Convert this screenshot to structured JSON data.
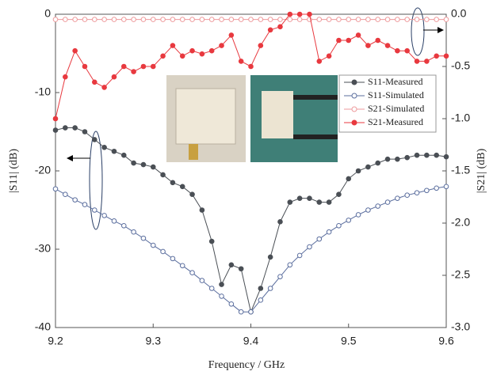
{
  "chart_data": {
    "type": "line",
    "x_label": "Frequency / GHz",
    "y_label": "|S11| (dB)",
    "y2_label": "|S21| (dB)",
    "x": [
      9.2,
      9.21,
      9.22,
      9.23,
      9.24,
      9.25,
      9.26,
      9.27,
      9.28,
      9.29,
      9.3,
      9.31,
      9.32,
      9.33,
      9.34,
      9.35,
      9.36,
      9.37,
      9.38,
      9.39,
      9.4,
      9.41,
      9.42,
      9.43,
      9.44,
      9.45,
      9.46,
      9.47,
      9.48,
      9.49,
      9.5,
      9.51,
      9.52,
      9.53,
      9.54,
      9.55,
      9.56,
      9.57,
      9.58,
      9.59,
      9.6
    ],
    "xlim": [
      9.2,
      9.6
    ],
    "xticks": [
      9.2,
      9.3,
      9.4,
      9.5,
      9.6
    ],
    "ylim": [
      -40,
      0
    ],
    "yticks": [
      0,
      -10,
      -20,
      -30,
      -40
    ],
    "y2lim": [
      -3,
      0
    ],
    "y2ticks": [
      {
        "value": 0,
        "label": "0.0"
      },
      -0.5,
      {
        "value": -1,
        "label": "-1.0"
      },
      -1.5,
      {
        "value": -2,
        "label": "-2.0"
      },
      -2.5,
      {
        "value": -3,
        "label": "-3.0"
      }
    ],
    "series": [
      {
        "name": "S11-Measured",
        "color": "#4a4f55",
        "filled": true,
        "axis": "y",
        "values": [
          -14.8,
          -14.5,
          -14.5,
          -15,
          -16,
          -17,
          -17.5,
          -18,
          -19,
          -19.2,
          -19.5,
          -20.5,
          -21.5,
          -22,
          -23,
          -25,
          -29,
          -34.5,
          -32,
          -32.5,
          -38,
          -35,
          -31,
          -26.5,
          -24,
          -23.5,
          -23.5,
          -24,
          -24,
          -23,
          -21,
          -20,
          -19.5,
          -19,
          -18.5,
          -18.5,
          -18.3,
          -18,
          -18,
          -18,
          -18.2
        ]
      },
      {
        "name": "S11-Simulated",
        "color": "#5b6e9e",
        "filled": false,
        "axis": "y",
        "values": [
          -22.3,
          -23,
          -23.7,
          -24.3,
          -25,
          -25.7,
          -26.4,
          -27,
          -27.8,
          -28.6,
          -29.5,
          -30.3,
          -31.2,
          -32.1,
          -33,
          -34,
          -35,
          -36,
          -37,
          -38,
          -38,
          -36.5,
          -35,
          -33.5,
          -32,
          -30.8,
          -29.7,
          -28.7,
          -27.8,
          -27,
          -26.3,
          -25.6,
          -25,
          -24.5,
          -24,
          -23.5,
          -23.1,
          -22.8,
          -22.5,
          -22.2,
          -22
        ]
      },
      {
        "name": "S21-Simulated",
        "color": "#ee9a9c",
        "filled": false,
        "axis": "y2",
        "values": [
          -0.05,
          -0.05,
          -0.05,
          -0.05,
          -0.05,
          -0.05,
          -0.05,
          -0.05,
          -0.05,
          -0.05,
          -0.05,
          -0.05,
          -0.05,
          -0.05,
          -0.05,
          -0.05,
          -0.05,
          -0.05,
          -0.05,
          -0.05,
          -0.05,
          -0.05,
          -0.05,
          -0.05,
          -0.05,
          -0.05,
          -0.05,
          -0.05,
          -0.05,
          -0.05,
          -0.05,
          -0.05,
          -0.05,
          -0.05,
          -0.05,
          -0.05,
          -0.05,
          -0.05,
          -0.05,
          -0.05,
          -0.05
        ]
      },
      {
        "name": "S21-Measured",
        "color": "#e8393f",
        "filled": true,
        "axis": "y2",
        "values": [
          -1.0,
          -0.6,
          -0.35,
          -0.5,
          -0.65,
          -0.7,
          -0.6,
          -0.5,
          -0.55,
          -0.5,
          -0.5,
          -0.4,
          -0.3,
          -0.4,
          -0.35,
          -0.38,
          -0.35,
          -0.3,
          -0.2,
          -0.45,
          -0.5,
          -0.3,
          -0.15,
          -0.12,
          0,
          0,
          0,
          -0.45,
          -0.4,
          -0.25,
          -0.25,
          -0.2,
          -0.3,
          -0.25,
          -0.3,
          -0.35,
          -0.35,
          -0.45,
          -0.45,
          -0.4,
          -0.4
        ]
      }
    ]
  }
}
